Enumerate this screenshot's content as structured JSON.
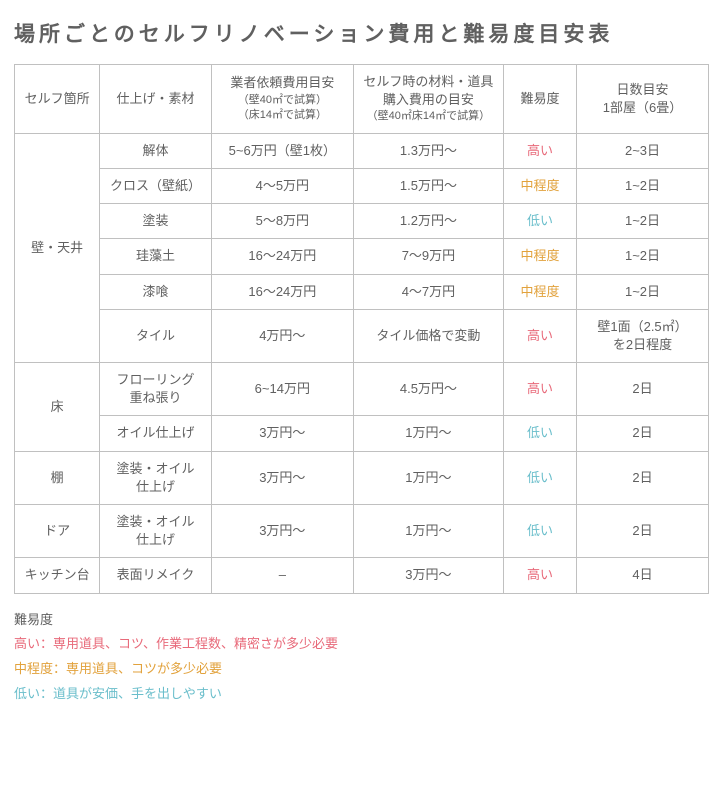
{
  "title": "場所ごとのセルフリノベーション費用と難易度目安表",
  "colors": {
    "text": "#606060",
    "border": "#c0c0c0",
    "high": "#e86a7a",
    "medium": "#e2a23c",
    "low": "#6abecb",
    "background": "#ffffff"
  },
  "columns": {
    "c1": "セルフ箇所",
    "c2": "仕上げ・素材",
    "c3_main": "業者依頼費用目安",
    "c3_sub1": "（壁40㎡で試算）",
    "c3_sub2": "（床14㎡で試算）",
    "c4_main": "セルフ時の材料・道具",
    "c4_main2": "購入費用の目安",
    "c4_sub": "（壁40㎡床14㎡で試算）",
    "c5": "難易度",
    "c6_main": "日数目安",
    "c6_sub": "1部屋（6畳）"
  },
  "difficulty_labels": {
    "high": "高い",
    "medium": "中程度",
    "low": "低い"
  },
  "groups": [
    {
      "area": "壁・天井",
      "rows": [
        {
          "material": "解体",
          "pro": "5~6万円（壁1枚）",
          "self": "1.3万円〜",
          "diff": "high",
          "days": "2~3日"
        },
        {
          "material": "クロス（壁紙）",
          "pro": "4〜5万円",
          "self": "1.5万円〜",
          "diff": "medium",
          "days": "1~2日"
        },
        {
          "material": "塗装",
          "pro": "5〜8万円",
          "self": "1.2万円〜",
          "diff": "low",
          "days": "1~2日"
        },
        {
          "material": "珪藻土",
          "pro": "16〜24万円",
          "self": "7〜9万円",
          "diff": "medium",
          "days": "1~2日"
        },
        {
          "material": "漆喰",
          "pro": "16〜24万円",
          "self": "4〜7万円",
          "diff": "medium",
          "days": "1~2日"
        },
        {
          "material": "タイル",
          "pro": "4万円〜",
          "self": "タイル価格で変動",
          "diff": "high",
          "days": "壁1面（2.5㎡）\nを2日程度"
        }
      ]
    },
    {
      "area": "床",
      "rows": [
        {
          "material": "フローリング\n重ね張り",
          "pro": "6~14万円",
          "self": "4.5万円〜",
          "diff": "high",
          "days": "2日"
        },
        {
          "material": "オイル仕上げ",
          "pro": "3万円〜",
          "self": "1万円〜",
          "diff": "low",
          "days": "2日"
        }
      ]
    },
    {
      "area": "棚",
      "rows": [
        {
          "material": "塗装・オイル\n仕上げ",
          "pro": "3万円〜",
          "self": "1万円〜",
          "diff": "low",
          "days": "2日"
        }
      ]
    },
    {
      "area": "ドア",
      "rows": [
        {
          "material": "塗装・オイル\n仕上げ",
          "pro": "3万円〜",
          "self": "1万円〜",
          "diff": "low",
          "days": "2日"
        }
      ]
    },
    {
      "area": "キッチン台",
      "rows": [
        {
          "material": "表面リメイク",
          "pro": "–",
          "self": "3万円〜",
          "diff": "high",
          "days": "4日"
        }
      ]
    }
  ],
  "legend": {
    "title": "難易度",
    "high": "高い：専用道具、コツ、作業工程数、精密さが多少必要",
    "medium": "中程度：専用道具、コツが多少必要",
    "low": "低い：道具が安価、手を出しやすい"
  }
}
